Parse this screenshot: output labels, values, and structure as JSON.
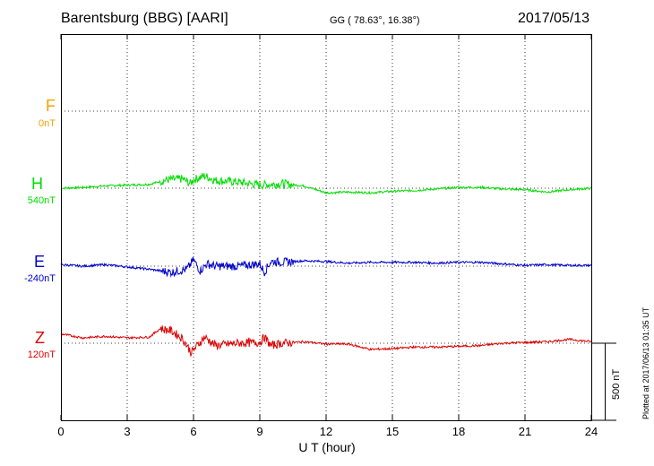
{
  "header": {
    "station": "Barentsburg (BBG)  [AARI]",
    "coords": "GG ( 78.63°,  16.38°)",
    "date": "2017/05/13"
  },
  "footer": {
    "plotted": "Plotted at 2017/06/13 01:35 UT",
    "scale": "500 nT"
  },
  "chart_data": {
    "type": "line",
    "xlabel": "U T (hour)",
    "xlim": [
      0,
      24
    ],
    "xticks": [
      0,
      3,
      6,
      9,
      12,
      15,
      18,
      21,
      24
    ],
    "grid": true,
    "nT_per_division": 500,
    "series": [
      {
        "name": "F",
        "baseline": "0nT",
        "color": "#f5a000",
        "values": []
      },
      {
        "name": "H",
        "baseline": "540nT",
        "color": "#00dd00",
        "values": [
          [
            0,
            0
          ],
          [
            1,
            5
          ],
          [
            2,
            15
          ],
          [
            3,
            20
          ],
          [
            4,
            25
          ],
          [
            4.8,
            55
          ],
          [
            5.5,
            60
          ],
          [
            5.85,
            30
          ],
          [
            6,
            55
          ],
          [
            6.5,
            80
          ],
          [
            7,
            50
          ],
          [
            8,
            40
          ],
          [
            9,
            20
          ],
          [
            10,
            30
          ],
          [
            11,
            15
          ],
          [
            12,
            -30
          ],
          [
            13,
            -25
          ],
          [
            14,
            -30
          ],
          [
            15,
            -20
          ],
          [
            16,
            -15
          ],
          [
            17,
            -5
          ],
          [
            18,
            5
          ],
          [
            19,
            5
          ],
          [
            20,
            -5
          ],
          [
            21,
            -10
          ],
          [
            22,
            -25
          ],
          [
            23,
            -10
          ],
          [
            24,
            0
          ]
        ]
      },
      {
        "name": "E",
        "baseline": "-240nT",
        "color": "#0000cc",
        "values": [
          [
            0,
            10
          ],
          [
            1,
            0
          ],
          [
            2,
            10
          ],
          [
            3,
            -5
          ],
          [
            4,
            -20
          ],
          [
            5,
            -40
          ],
          [
            5.7,
            -20
          ],
          [
            6,
            40
          ],
          [
            6.3,
            -30
          ],
          [
            6.6,
            15
          ],
          [
            7,
            0
          ],
          [
            8,
            0
          ],
          [
            9,
            15
          ],
          [
            9.2,
            -40
          ],
          [
            9.5,
            30
          ],
          [
            10,
            25
          ],
          [
            11,
            35
          ],
          [
            12,
            30
          ],
          [
            13,
            20
          ],
          [
            14,
            25
          ],
          [
            15,
            25
          ],
          [
            16,
            25
          ],
          [
            17,
            20
          ],
          [
            18,
            25
          ],
          [
            19,
            25
          ],
          [
            20,
            15
          ],
          [
            21,
            5
          ],
          [
            22,
            10
          ],
          [
            23,
            5
          ],
          [
            24,
            5
          ]
        ]
      },
      {
        "name": "Z",
        "baseline": "120nT",
        "color": "#dd0000",
        "values": [
          [
            0,
            60
          ],
          [
            1,
            35
          ],
          [
            2,
            45
          ],
          [
            3,
            35
          ],
          [
            4,
            40
          ],
          [
            4.5,
            95
          ],
          [
            5,
            80
          ],
          [
            5.5,
            30
          ],
          [
            5.9,
            -60
          ],
          [
            6.2,
            -10
          ],
          [
            6.5,
            40
          ],
          [
            7,
            -15
          ],
          [
            8,
            0
          ],
          [
            9,
            5
          ],
          [
            9.2,
            40
          ],
          [
            9.5,
            -15
          ],
          [
            10,
            0
          ],
          [
            11,
            10
          ],
          [
            12,
            -5
          ],
          [
            13,
            -5
          ],
          [
            14,
            -40
          ],
          [
            15,
            -35
          ],
          [
            16,
            -25
          ],
          [
            17,
            -25
          ],
          [
            18,
            -20
          ],
          [
            19,
            -15
          ],
          [
            20,
            0
          ],
          [
            21,
            5
          ],
          [
            22,
            10
          ],
          [
            23,
            25
          ],
          [
            24,
            10
          ]
        ]
      }
    ]
  }
}
